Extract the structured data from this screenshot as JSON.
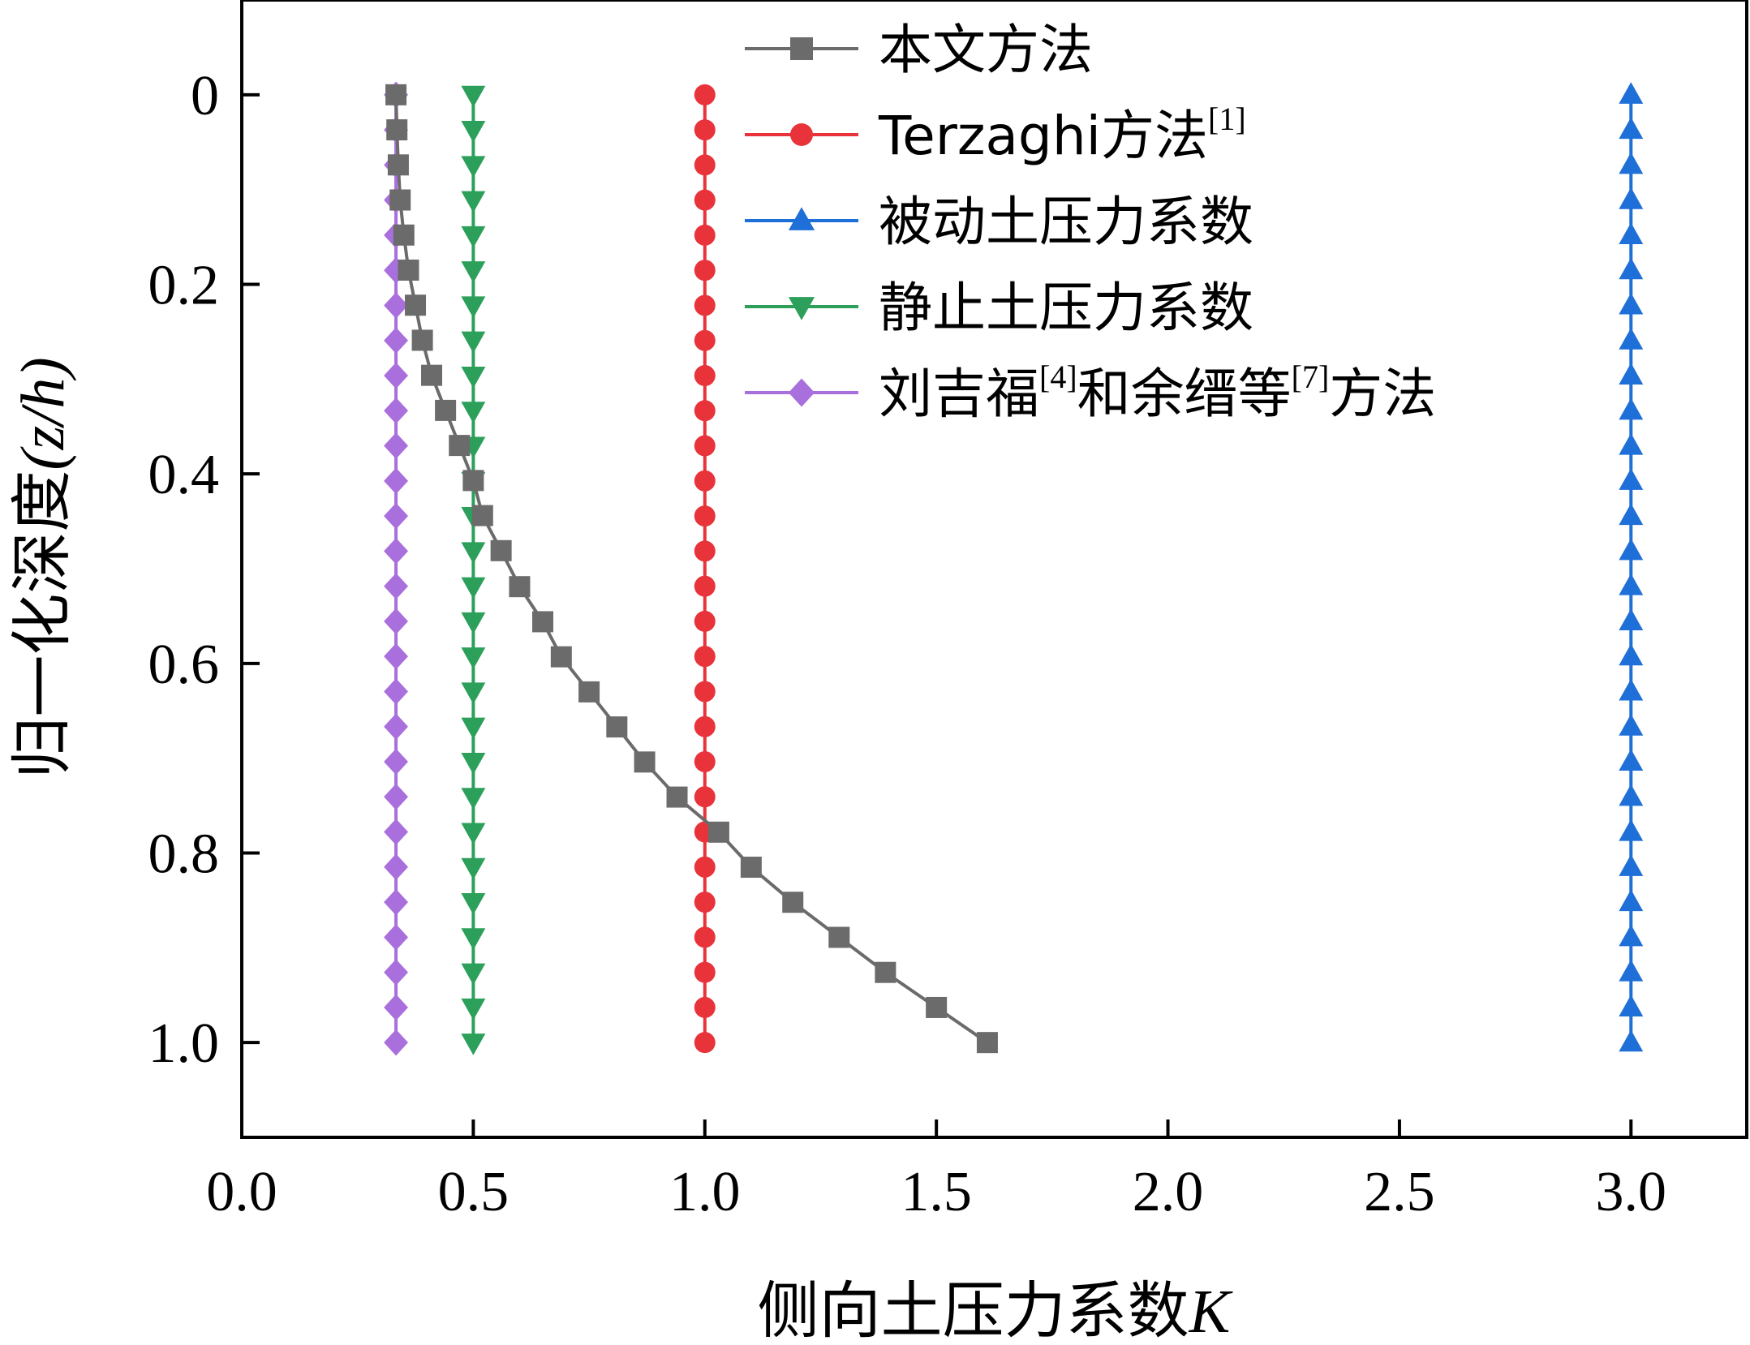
{
  "chart_data": {
    "type": "line",
    "xlabel": "侧向土压力系数",
    "xlabel_var": "K",
    "ylabel": "归一化深度",
    "ylabel_var": "(z/h)",
    "xlim": [
      0.0,
      3.25
    ],
    "ylim": [
      1.1,
      -0.1
    ],
    "y_inverted": true,
    "x_ticks": [
      "0.0",
      "0.5",
      "1.0",
      "1.5",
      "2.0",
      "2.5",
      "3.0"
    ],
    "y_ticks": [
      "0",
      "0.2",
      "0.4",
      "0.6",
      "0.8",
      "1.0"
    ],
    "grid": false,
    "legend_position": "top-right",
    "series": [
      {
        "name": "本文方法",
        "legend_sup": "",
        "legend_parts": [
          {
            "t": "本文方法"
          }
        ],
        "color": "#6b6b6b",
        "marker": "square",
        "y": [
          0,
          0.037,
          0.074,
          0.111,
          0.148,
          0.185,
          0.222,
          0.259,
          0.296,
          0.333,
          0.37,
          0.407,
          0.444,
          0.481,
          0.519,
          0.556,
          0.593,
          0.63,
          0.667,
          0.704,
          0.741,
          0.778,
          0.815,
          0.852,
          0.889,
          0.926,
          0.963,
          1.0
        ],
        "x": [
          0.333,
          0.335,
          0.338,
          0.342,
          0.35,
          0.36,
          0.375,
          0.39,
          0.41,
          0.44,
          0.47,
          0.5,
          0.52,
          0.56,
          0.6,
          0.65,
          0.69,
          0.75,
          0.81,
          0.87,
          0.94,
          1.03,
          1.1,
          1.19,
          1.29,
          1.39,
          1.5,
          1.61
        ]
      },
      {
        "name": "Terzaghi方法[1]",
        "legend_parts": [
          {
            "t": "Terzaghi方法"
          },
          {
            "t": "[1]",
            "sup": true
          }
        ],
        "color": "#e8333a",
        "marker": "circle",
        "constant_x": 1.0,
        "n": 28
      },
      {
        "name": "被动土压力系数",
        "legend_parts": [
          {
            "t": "被动土压力系数"
          }
        ],
        "color": "#1f6fd8",
        "marker": "triangle-up",
        "constant_x": 3.0,
        "n": 28
      },
      {
        "name": "静止土压力系数",
        "legend_parts": [
          {
            "t": "静止土压力系数"
          }
        ],
        "color": "#2ca05a",
        "marker": "triangle-down",
        "constant_x": 0.5,
        "n": 28
      },
      {
        "name": "刘吉福[4]和余缙等[7]方法",
        "legend_parts": [
          {
            "t": "刘吉福"
          },
          {
            "t": "[4]",
            "sup": true
          },
          {
            "t": "和余缙等"
          },
          {
            "t": "[7]",
            "sup": true
          },
          {
            "t": "方法"
          }
        ],
        "color": "#a96fdc",
        "marker": "diamond",
        "constant_x": 0.333,
        "n": 28
      }
    ]
  }
}
